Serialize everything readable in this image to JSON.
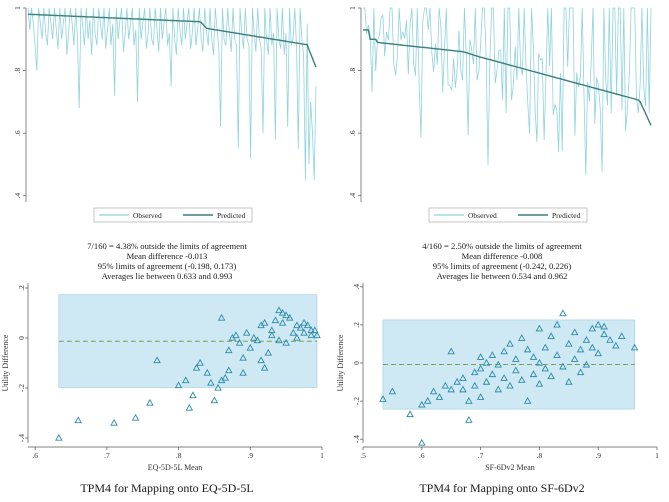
{
  "colors": {
    "observed": "#8fd3de",
    "predicted": "#3a7f7c",
    "band": "#cfe9f4",
    "band_stroke": "#9ccbe0",
    "marker": "#2a8aa8",
    "mean_line": "#7aa05a"
  },
  "left": {
    "line_chart": {
      "yticks": [
        ".4",
        ".6",
        ".8",
        "1"
      ],
      "legend": {
        "observed": "Observed",
        "predicted": "Predicted"
      }
    },
    "stats": {
      "line1": "7/160 =   4.38% outside the limits of agreement",
      "line2": "Mean difference -0.013",
      "line3": "95% limits of agreement (-0.198, 0.173)",
      "line4": "Averages lie between 0.633 and 0.993"
    },
    "scatter": {
      "xlabel": "EQ-5D-5L Mean",
      "ylabel": "Utility Difference",
      "xticks": [
        ".6",
        ".7",
        ".8",
        ".9",
        "1"
      ],
      "yticks": [
        "-.4",
        "-.2",
        "0",
        ".2"
      ]
    },
    "caption": "TPM4 for Mapping onto EQ-5D-5L"
  },
  "right": {
    "line_chart": {
      "yticks": [
        ".4",
        ".6",
        ".8",
        "1"
      ],
      "legend": {
        "observed": "Observed",
        "predicted": "Predicted"
      }
    },
    "stats": {
      "line1": "4/160 =   2.50% outside the limits of agreement",
      "line2": "Mean difference -0.008",
      "line3": "95% limits of agreement (-0.242, 0.226)",
      "line4": "Averages lie between 0.534 and 0.962"
    },
    "scatter": {
      "xlabel": "SF-6Dv2 Mean",
      "ylabel": "Utility Difference",
      "xticks": [
        ".5",
        ".6",
        ".7",
        ".8",
        ".9",
        "1"
      ],
      "yticks": [
        "-.4",
        "-.2",
        "0",
        ".2",
        ".4"
      ]
    },
    "caption": "TPM4 for Mapping onto SF-6Dv2"
  },
  "chart_data": [
    {
      "type": "line",
      "xlabel": "",
      "ylabel": "",
      "ylim": [
        0.38,
        1.0
      ],
      "x": "observation index 1..160",
      "series": [
        {
          "name": "Observed",
          "values": [
            1.0,
            0.93,
            1.0,
            0.95,
            0.88,
            0.8,
            1.0,
            0.95,
            0.9,
            1.0,
            0.92,
            0.88,
            1.0,
            0.95,
            0.9,
            1.0,
            0.93,
            0.87,
            1.0,
            0.9,
            0.95,
            1.0,
            0.85,
            0.92,
            1.0,
            0.95,
            0.88,
            1.0,
            0.9,
            0.68,
            1.0,
            0.94,
            0.88,
            1.0,
            0.9,
            0.96,
            0.85,
            1.0,
            0.92,
            0.88,
            1.0,
            0.95,
            0.9,
            1.0,
            0.87,
            0.93,
            1.0,
            0.88,
            0.95,
            0.72,
            1.0,
            0.9,
            0.96,
            1.0,
            0.86,
            0.92,
            1.0,
            0.9,
            0.95,
            1.0,
            0.88,
            0.93,
            0.7,
            1.0,
            0.9,
            0.95,
            1.0,
            0.87,
            0.92,
            1.0,
            0.9,
            0.88,
            1.0,
            0.93,
            0.86,
            1.0,
            0.9,
            0.95,
            1.0,
            0.88,
            0.92,
            0.75,
            1.0,
            0.9,
            0.85,
            1.0,
            0.93,
            0.88,
            1.0,
            0.9,
            0.95,
            1.0,
            0.87,
            0.92,
            1.0,
            0.88,
            0.93,
            1.0,
            0.9,
            0.86,
            1.0,
            0.92,
            0.88,
            1.0,
            0.9,
            0.85,
            1.0,
            0.93,
            0.87,
            0.62,
            1.0,
            0.9,
            0.88,
            1.0,
            0.92,
            0.86,
            1.0,
            0.9,
            0.88,
            0.55,
            1.0,
            0.92,
            0.87,
            1.0,
            0.9,
            0.88,
            0.52,
            1.0,
            0.92,
            0.86,
            1.0,
            0.9,
            0.87,
            0.6,
            1.0,
            0.9,
            0.85,
            1.0,
            0.88,
            0.92,
            0.58,
            1.0,
            0.9,
            0.87,
            1.0,
            0.85,
            0.92,
            0.62,
            1.0,
            0.88,
            0.9,
            1.0,
            0.87,
            0.55,
            1.0,
            0.9,
            0.85,
            0.45,
            0.95,
            0.5,
            0.7,
            0.6,
            0.45,
            0.75
          ]
        },
        {
          "name": "Predicted",
          "values": "step-down curve from 0.98 to 0.81"
        }
      ]
    },
    {
      "type": "line",
      "xlabel": "",
      "ylabel": "",
      "ylim": [
        0.38,
        1.0
      ],
      "x": "observation index 1..160",
      "series": [
        {
          "name": "Observed",
          "values": "fluctuating 0.42-1.0"
        },
        {
          "name": "Predicted",
          "values": "step-down curve from 0.93 to 0.62"
        }
      ]
    },
    {
      "type": "scatter",
      "xlabel": "EQ-5D-5L Mean",
      "ylabel": "Utility Difference",
      "xlim": [
        0.59,
        1.0
      ],
      "ylim": [
        -0.42,
        0.22
      ],
      "mean_difference": -0.013,
      "limits_of_agreement": [
        -0.198,
        0.173
      ],
      "points": [
        [
          0.633,
          -0.4
        ],
        [
          0.66,
          -0.33
        ],
        [
          0.71,
          -0.34
        ],
        [
          0.74,
          -0.32
        ],
        [
          0.76,
          -0.26
        ],
        [
          0.77,
          -0.09
        ],
        [
          0.8,
          -0.19
        ],
        [
          0.81,
          -0.17
        ],
        [
          0.815,
          -0.28
        ],
        [
          0.82,
          -0.23
        ],
        [
          0.825,
          -0.12
        ],
        [
          0.83,
          -0.1
        ],
        [
          0.84,
          -0.14
        ],
        [
          0.845,
          -0.18
        ],
        [
          0.85,
          -0.25
        ],
        [
          0.855,
          -0.2
        ],
        [
          0.86,
          0.08
        ],
        [
          0.86,
          -0.17
        ],
        [
          0.865,
          -0.16
        ],
        [
          0.87,
          -0.13
        ],
        [
          0.87,
          -0.05
        ],
        [
          0.875,
          0.0
        ],
        [
          0.88,
          0.01
        ],
        [
          0.885,
          -0.02
        ],
        [
          0.89,
          -0.14
        ],
        [
          0.89,
          -0.08
        ],
        [
          0.895,
          0.02
        ],
        [
          0.9,
          -0.04
        ],
        [
          0.905,
          0.0
        ],
        [
          0.91,
          -0.01
        ],
        [
          0.915,
          0.05
        ],
        [
          0.915,
          -0.09
        ],
        [
          0.92,
          -0.12
        ],
        [
          0.92,
          0.06
        ],
        [
          0.925,
          -0.06
        ],
        [
          0.93,
          0.01
        ],
        [
          0.93,
          0.03
        ],
        [
          0.935,
          0.07
        ],
        [
          0.94,
          0.11
        ],
        [
          0.94,
          -0.01
        ],
        [
          0.945,
          0.1
        ],
        [
          0.945,
          0.06
        ],
        [
          0.95,
          0.09
        ],
        [
          0.95,
          -0.02
        ],
        [
          0.955,
          0.08
        ],
        [
          0.96,
          0.02
        ],
        [
          0.965,
          0.05
        ],
        [
          0.965,
          0.0
        ],
        [
          0.97,
          0.04
        ],
        [
          0.975,
          0.06
        ],
        [
          0.975,
          0.02
        ],
        [
          0.98,
          0.05
        ],
        [
          0.985,
          0.03
        ],
        [
          0.985,
          0.01
        ],
        [
          0.99,
          0.03
        ],
        [
          0.993,
          0.01
        ]
      ]
    },
    {
      "type": "scatter",
      "xlabel": "SF-6Dv2 Mean",
      "ylabel": "Utility Difference",
      "xlim": [
        0.5,
        1.0
      ],
      "ylim": [
        -0.42,
        0.42
      ],
      "mean_difference": -0.008,
      "limits_of_agreement": [
        -0.242,
        0.226
      ],
      "points": [
        [
          0.534,
          -0.19
        ],
        [
          0.55,
          -0.15
        ],
        [
          0.58,
          -0.27
        ],
        [
          0.6,
          -0.22
        ],
        [
          0.6,
          -0.42
        ],
        [
          0.61,
          -0.2
        ],
        [
          0.62,
          -0.15
        ],
        [
          0.63,
          -0.18
        ],
        [
          0.64,
          -0.12
        ],
        [
          0.65,
          -0.14
        ],
        [
          0.65,
          0.06
        ],
        [
          0.66,
          -0.1
        ],
        [
          0.67,
          -0.08
        ],
        [
          0.67,
          -0.14
        ],
        [
          0.68,
          -0.2
        ],
        [
          0.68,
          -0.3
        ],
        [
          0.69,
          -0.05
        ],
        [
          0.69,
          -0.12
        ],
        [
          0.7,
          -0.03
        ],
        [
          0.7,
          0.03
        ],
        [
          0.7,
          -0.18
        ],
        [
          0.71,
          0.0
        ],
        [
          0.71,
          -0.1
        ],
        [
          0.72,
          0.04
        ],
        [
          0.72,
          -0.06
        ],
        [
          0.73,
          -0.01
        ],
        [
          0.73,
          -0.14
        ],
        [
          0.74,
          0.06
        ],
        [
          0.74,
          -0.08
        ],
        [
          0.75,
          0.1
        ],
        [
          0.75,
          -0.12
        ],
        [
          0.76,
          0.02
        ],
        [
          0.76,
          -0.04
        ],
        [
          0.77,
          0.13
        ],
        [
          0.77,
          -0.09
        ],
        [
          0.78,
          0.07
        ],
        [
          0.78,
          -0.2
        ],
        [
          0.79,
          0.03
        ],
        [
          0.79,
          -0.06
        ],
        [
          0.8,
          0.18
        ],
        [
          0.8,
          0.0
        ],
        [
          0.8,
          -0.11
        ],
        [
          0.81,
          0.08
        ],
        [
          0.81,
          -0.03
        ],
        [
          0.82,
          0.14
        ],
        [
          0.82,
          -0.07
        ],
        [
          0.83,
          0.2
        ],
        [
          0.83,
          0.04
        ],
        [
          0.84,
          0.26
        ],
        [
          0.84,
          -0.02
        ],
        [
          0.85,
          0.1
        ],
        [
          0.85,
          -0.1
        ],
        [
          0.86,
          0.16
        ],
        [
          0.86,
          0.02
        ],
        [
          0.87,
          0.07
        ],
        [
          0.87,
          -0.05
        ],
        [
          0.88,
          0.12
        ],
        [
          0.88,
          -0.01
        ],
        [
          0.89,
          0.18
        ],
        [
          0.89,
          0.08
        ],
        [
          0.9,
          0.2
        ],
        [
          0.9,
          0.05
        ],
        [
          0.91,
          0.15
        ],
        [
          0.91,
          0.19
        ],
        [
          0.92,
          0.12
        ],
        [
          0.93,
          0.09
        ],
        [
          0.94,
          0.14
        ],
        [
          0.962,
          0.08
        ]
      ]
    }
  ]
}
